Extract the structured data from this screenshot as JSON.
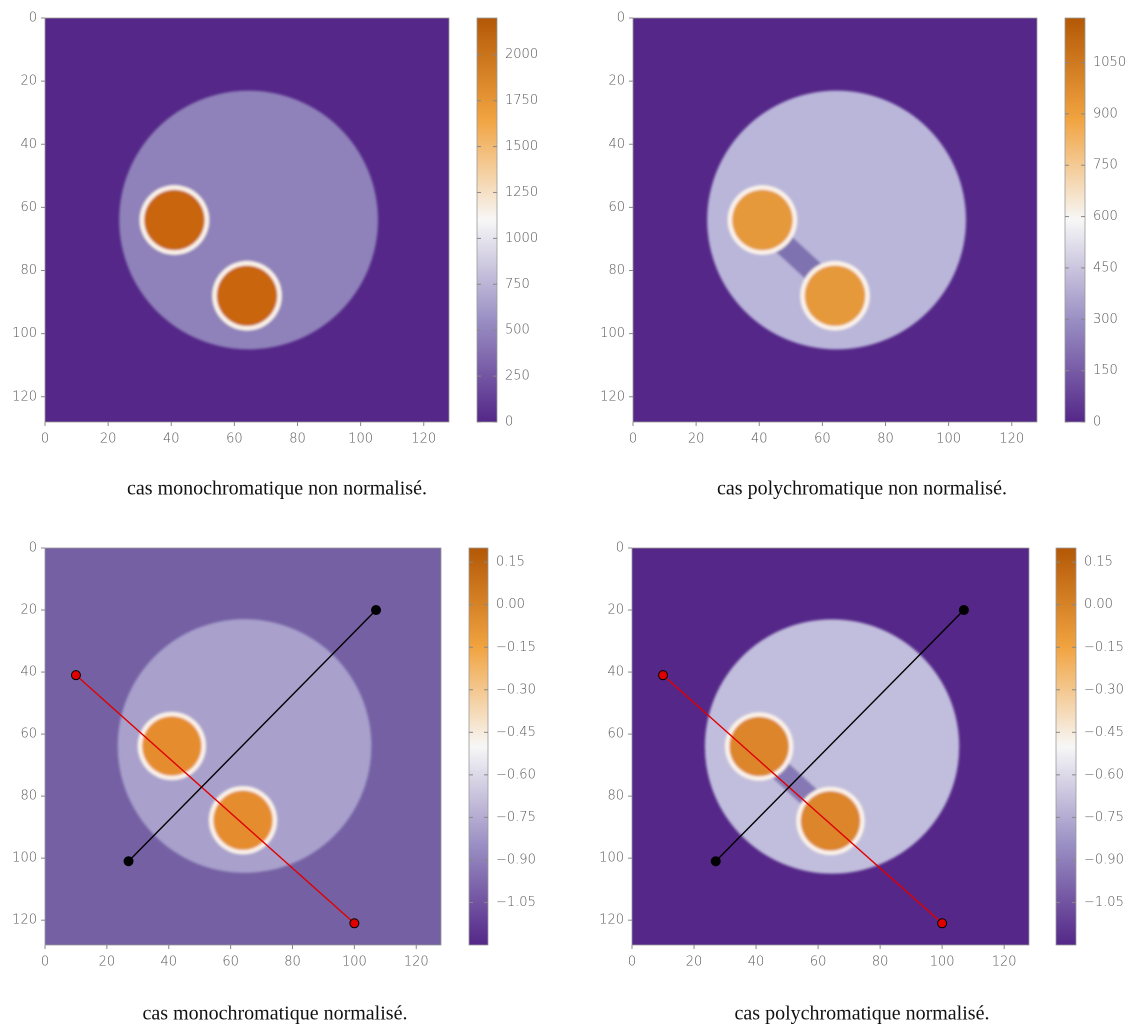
{
  "chart_data": [
    {
      "type": "heatmap",
      "caption": "cas monochromatique non normalisé.",
      "xlim": [
        0,
        128
      ],
      "ylim": [
        128,
        0
      ],
      "xticks": [
        0,
        20,
        40,
        60,
        80,
        100,
        120
      ],
      "yticks": [
        0,
        20,
        40,
        60,
        80,
        100,
        120
      ],
      "clim": [
        0,
        2200
      ],
      "cticks": [
        0,
        250,
        500,
        750,
        1000,
        1250,
        1500,
        1750,
        2000
      ]
    },
    {
      "type": "heatmap",
      "caption": "cas polychromatique non normalisé.",
      "xlim": [
        0,
        128
      ],
      "ylim": [
        128,
        0
      ],
      "xticks": [
        0,
        20,
        40,
        60,
        80,
        100,
        120
      ],
      "yticks": [
        0,
        20,
        40,
        60,
        80,
        100,
        120
      ],
      "clim": [
        0,
        1180
      ],
      "cticks": [
        0,
        150,
        300,
        450,
        600,
        750,
        900,
        1050
      ]
    },
    {
      "type": "heatmap",
      "caption": "cas monochromatique normalisé.",
      "xlim": [
        0,
        128
      ],
      "ylim": [
        128,
        0
      ],
      "xticks": [
        0,
        20,
        40,
        60,
        80,
        100,
        120
      ],
      "yticks": [
        0,
        20,
        40,
        60,
        80,
        100,
        120
      ],
      "clim": [
        -1.2,
        0.2
      ],
      "cticks": [
        0.15,
        {
          "value": 0,
          "label": "0.00"
        },
        {
          "value": -0.15,
          "label": "−0.15"
        },
        {
          "value": -0.3,
          "label": "−0.30"
        },
        {
          "value": -0.45,
          "label": "−0.45"
        },
        {
          "value": -0.6,
          "label": "−0.60"
        },
        {
          "value": -0.75,
          "label": "−0.75"
        },
        {
          "value": -0.9,
          "label": "−0.90"
        },
        {
          "value": -1.05,
          "label": "−1.05"
        }
      ],
      "lines": [
        {
          "color": "#e00000",
          "x": [
            10,
            100
          ],
          "y": [
            41,
            121
          ]
        },
        {
          "color": "#000000",
          "x": [
            27,
            107
          ],
          "y": [
            101,
            20
          ]
        }
      ]
    },
    {
      "type": "heatmap",
      "caption": "cas polychromatique normalisé.",
      "xlim": [
        0,
        128
      ],
      "ylim": [
        128,
        0
      ],
      "xticks": [
        0,
        20,
        40,
        60,
        80,
        100,
        120
      ],
      "yticks": [
        0,
        20,
        40,
        60,
        80,
        100,
        120
      ],
      "clim": [
        -1.2,
        0.2
      ],
      "cticks": [
        0.15,
        {
          "value": 0,
          "label": "0.00"
        },
        {
          "value": -0.15,
          "label": "−0.15"
        },
        {
          "value": -0.3,
          "label": "−0.30"
        },
        {
          "value": -0.45,
          "label": "−0.45"
        },
        {
          "value": -0.6,
          "label": "−0.60"
        },
        {
          "value": -0.75,
          "label": "−0.75"
        },
        {
          "value": -0.9,
          "label": "−0.90"
        },
        {
          "value": -1.05,
          "label": "−1.05"
        }
      ],
      "lines": [
        {
          "color": "#e00000",
          "x": [
            10,
            100
          ],
          "y": [
            41,
            121
          ]
        },
        {
          "color": "#000000",
          "x": [
            27,
            107
          ],
          "y": [
            101,
            20
          ]
        }
      ]
    }
  ]
}
